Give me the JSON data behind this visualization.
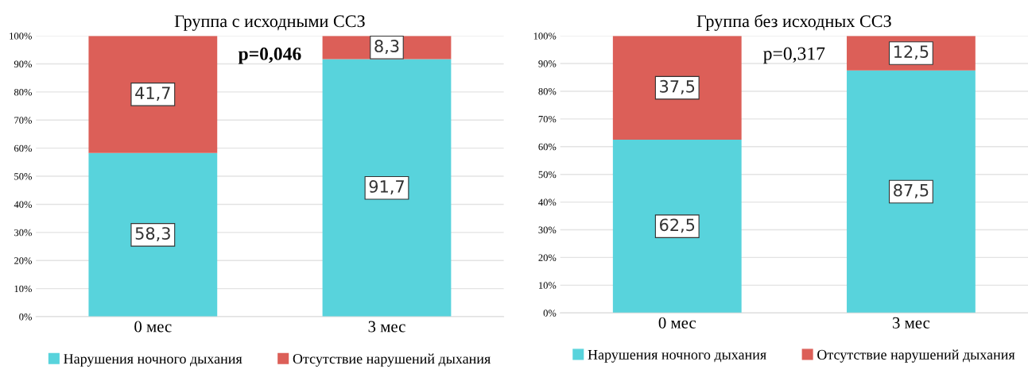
{
  "chart_data": [
    {
      "type": "bar",
      "title": "Группа с исходными ССЗ",
      "stacked": true,
      "categories": [
        "0 мес",
        "3 мес"
      ],
      "series": [
        {
          "name": "Нарушения ночного дыхания",
          "color": "#58d3dc",
          "values": [
            58.3,
            91.7
          ],
          "value_labels": [
            "58,3",
            "91,7"
          ]
        },
        {
          "name": "Отсутствие нарушений дыхания",
          "color": "#dc5f58",
          "values": [
            41.7,
            8.3
          ],
          "value_labels": [
            "41,7",
            "8,3"
          ]
        }
      ],
      "ylim": [
        0,
        100
      ],
      "yticks": [
        {
          "value": 0,
          "label": "0%"
        },
        {
          "value": 10,
          "label": "10%"
        },
        {
          "value": 20,
          "label": "20%"
        },
        {
          "value": 30,
          "label": "30%"
        },
        {
          "value": 40,
          "label": "40%"
        },
        {
          "value": 50,
          "label": "50%"
        },
        {
          "value": 60,
          "label": "60%"
        },
        {
          "value": 70,
          "label": "70%"
        },
        {
          "value": 80,
          "label": "80%"
        },
        {
          "value": 90,
          "label": "90%"
        },
        {
          "value": 100,
          "label": "100%"
        }
      ],
      "grid": "y",
      "legend": "bottom",
      "annotations": [
        "p=0,046"
      ]
    },
    {
      "type": "bar",
      "title": "Группа без исходных ССЗ",
      "stacked": true,
      "categories": [
        "0 мес",
        "3 мес"
      ],
      "series": [
        {
          "name": "Нарушения ночного дыхания",
          "color": "#58d3dc",
          "values": [
            62.5,
            87.5
          ],
          "value_labels": [
            "62,5",
            "87,5"
          ]
        },
        {
          "name": "Отсутствие нарушений дыхания",
          "color": "#dc5f58",
          "values": [
            37.5,
            12.5
          ],
          "value_labels": [
            "37,5",
            "12,5"
          ]
        }
      ],
      "ylim": [
        0,
        100
      ],
      "yticks": [
        {
          "value": 0,
          "label": "0%"
        },
        {
          "value": 10,
          "label": "10%"
        },
        {
          "value": 20,
          "label": "20%"
        },
        {
          "value": 30,
          "label": "30%"
        },
        {
          "value": 40,
          "label": "40%"
        },
        {
          "value": 50,
          "label": "50%"
        },
        {
          "value": 60,
          "label": "60%"
        },
        {
          "value": 70,
          "label": "70%"
        },
        {
          "value": 80,
          "label": "80%"
        },
        {
          "value": 90,
          "label": "90%"
        },
        {
          "value": 100,
          "label": "100%"
        }
      ],
      "grid": "y",
      "legend": "bottom",
      "annotations": [
        "p=0,317"
      ]
    }
  ]
}
